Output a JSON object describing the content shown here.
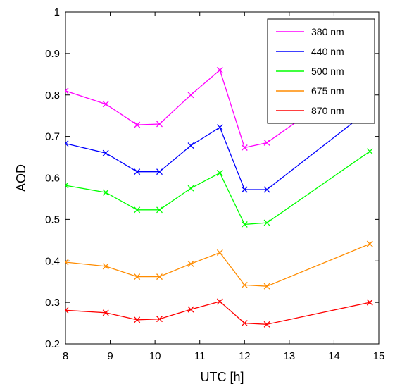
{
  "chart_data": {
    "type": "line",
    "xlabel": "UTC [h]",
    "ylabel": "AOD",
    "xlim": [
      8,
      15
    ],
    "ylim": [
      0.2,
      1
    ],
    "x_ticks": [
      "8",
      "9",
      "10",
      "11",
      "12",
      "13",
      "14",
      "15"
    ],
    "y_ticks": [
      "0.2",
      "0.3",
      "0.4",
      "0.5",
      "0.6",
      "0.7",
      "0.8",
      "0.9",
      "1"
    ],
    "grid": false,
    "legend_position": "top-right",
    "series": [
      {
        "name": "380 nm",
        "color": "#ff00ff",
        "x": [
          8.0,
          8.9,
          9.6,
          10.1,
          10.8,
          11.45,
          12.0,
          12.5,
          14.8
        ],
        "y": [
          0.81,
          0.778,
          0.728,
          0.73,
          0.8,
          0.86,
          0.673,
          0.685,
          0.86
        ]
      },
      {
        "name": "440 nm",
        "color": "#0000ff",
        "x": [
          8.0,
          8.9,
          9.6,
          10.1,
          10.8,
          11.45,
          12.0,
          12.5,
          14.8
        ],
        "y": [
          0.683,
          0.66,
          0.615,
          0.615,
          0.678,
          0.722,
          0.572,
          0.572,
          0.765
        ]
      },
      {
        "name": "500 nm",
        "color": "#00ff00",
        "x": [
          8.0,
          8.9,
          9.6,
          10.1,
          10.8,
          11.45,
          12.0,
          12.5,
          14.8
        ],
        "y": [
          0.582,
          0.565,
          0.523,
          0.523,
          0.575,
          0.612,
          0.488,
          0.492,
          0.664
        ]
      },
      {
        "name": "675 nm",
        "color": "#ff8c00",
        "x": [
          8.0,
          8.9,
          9.6,
          10.1,
          10.8,
          11.45,
          12.0,
          12.5,
          14.8
        ],
        "y": [
          0.397,
          0.387,
          0.362,
          0.362,
          0.393,
          0.42,
          0.342,
          0.339,
          0.441
        ]
      },
      {
        "name": "870 nm",
        "color": "#ff0000",
        "x": [
          8.0,
          8.9,
          9.6,
          10.1,
          10.8,
          11.45,
          12.0,
          12.5,
          14.8
        ],
        "y": [
          0.281,
          0.275,
          0.258,
          0.26,
          0.283,
          0.302,
          0.25,
          0.247,
          0.3
        ]
      }
    ]
  }
}
